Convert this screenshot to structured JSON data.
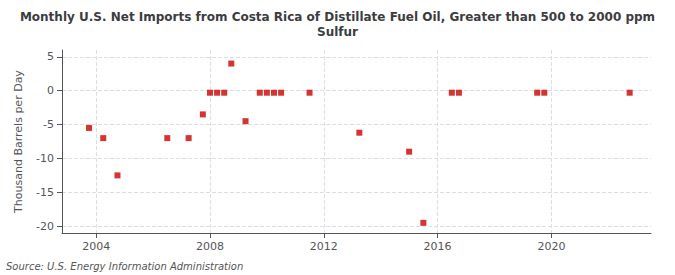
{
  "chart_data": {
    "type": "scatter",
    "title": "Monthly U.S. Net Imports from Costa Rica of Distillate Fuel Oil, Greater than 500 to 2000 ppm\nSulfur",
    "ylabel": "Thousand Barrels per Day",
    "annotations": [
      "Source: U.S. Energy Information Administration"
    ],
    "x": [
      2003.75,
      2004.25,
      2004.75,
      2006.5,
      2007.25,
      2007.75,
      2008.0,
      2008.25,
      2008.5,
      2008.75,
      2009.25,
      2009.75,
      2010.0,
      2010.25,
      2010.5,
      2011.5,
      2013.25,
      2015.0,
      2015.5,
      2016.5,
      2016.75,
      2019.5,
      2019.75,
      2022.75
    ],
    "values": [
      -5.5,
      -7.0,
      -12.5,
      -7.0,
      -7.0,
      -3.5,
      -0.3,
      -0.3,
      -0.3,
      4.0,
      -4.5,
      -0.3,
      -0.3,
      -0.3,
      -0.3,
      -0.3,
      -6.2,
      -9.0,
      -19.5,
      -0.3,
      -0.3,
      -0.3,
      -0.3,
      -0.3
    ],
    "color": "#cc0000",
    "marker": "square",
    "xlim": [
      2002.8,
      2023.5
    ],
    "xticks": [
      2004,
      2008,
      2012,
      2016,
      2020
    ],
    "ylim": [
      -21,
      6
    ],
    "yticks": [
      -20,
      -15,
      -10,
      -5,
      0,
      5
    ],
    "grid": true
  }
}
